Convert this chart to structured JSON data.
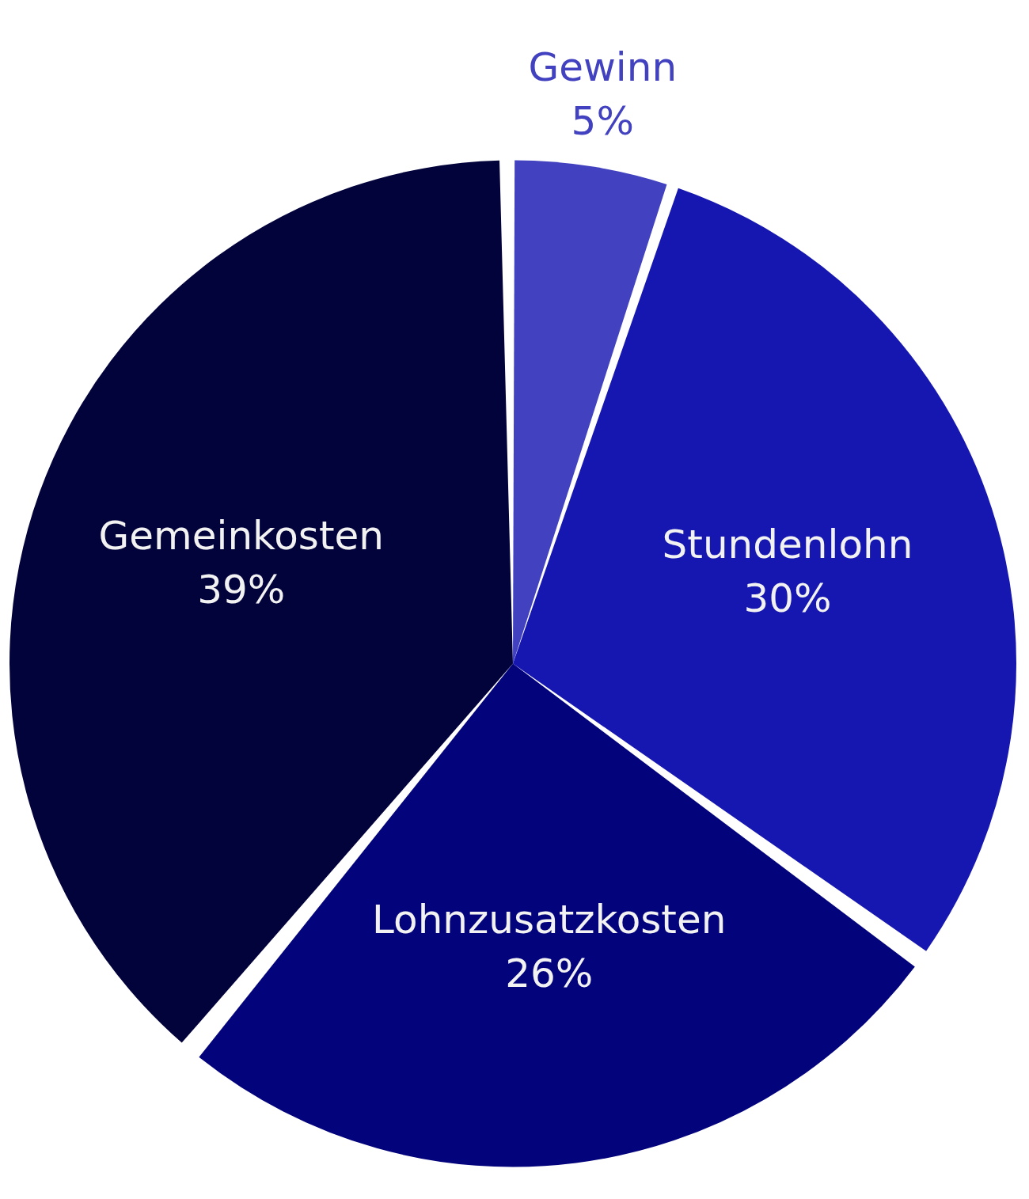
{
  "chart_data": {
    "type": "pie",
    "categories": [
      "Gewinn",
      "Stundenlohn",
      "Lohnzusatzkosten",
      "Gemeinkosten"
    ],
    "values": [
      5,
      30,
      26,
      39
    ],
    "colors": [
      "#4242c0",
      "#1616b0",
      "#03037c",
      "#03033c"
    ],
    "value_labels": [
      "5%",
      "30%",
      "26%",
      "39%"
    ],
    "legend": false
  }
}
